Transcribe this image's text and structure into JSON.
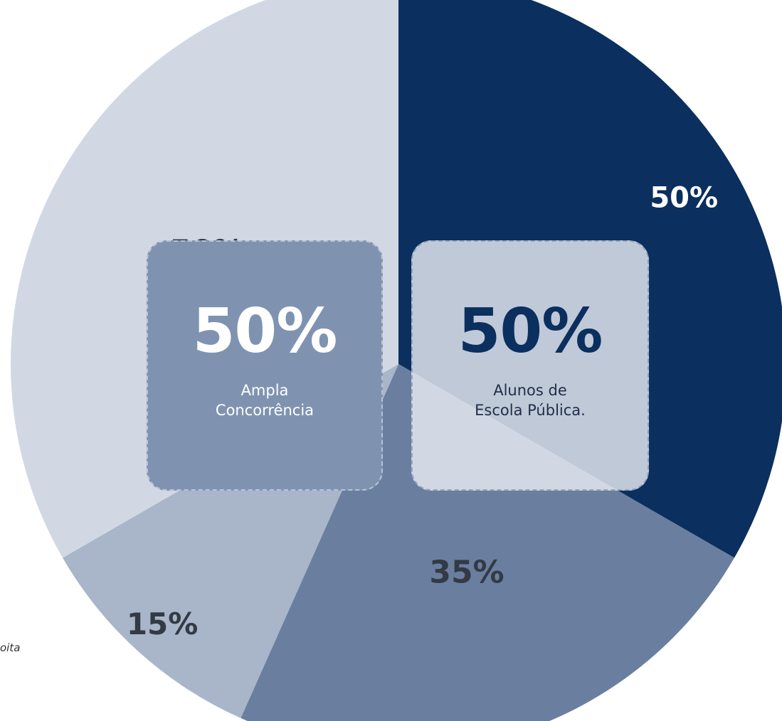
{
  "chart_data": {
    "type": "pie",
    "slices": [
      {
        "label": "50%",
        "value": 50,
        "color": "#0b2f5e",
        "label_color": "#ffffff"
      },
      {
        "label": "35%",
        "value": 35,
        "color": "#6a7f9f",
        "label_color": "#333a45"
      },
      {
        "label": "15%",
        "value": 15,
        "color": "#a9b5c8",
        "label_color": "#333a45"
      },
      {
        "label": "50%",
        "value": 50,
        "color": "#d1d8e3",
        "label_color": "#333a45"
      }
    ],
    "groups": [
      {
        "percent": "50%",
        "line1": "Ampla",
        "line2": "Concorrência"
      },
      {
        "percent": "50%",
        "line1": "Alunos de",
        "line2": "Escola Pública."
      }
    ]
  },
  "fragment_text": "oita"
}
